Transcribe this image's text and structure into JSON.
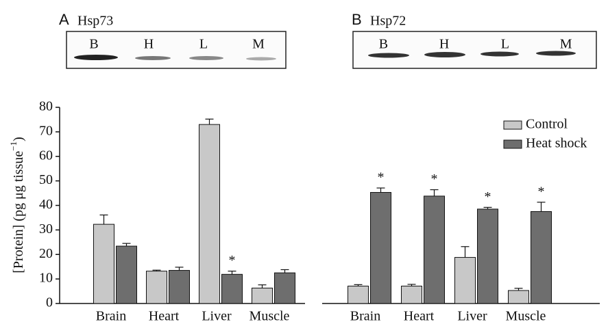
{
  "chart_data": [
    {
      "type": "bar",
      "panel": "A",
      "protein": "Hsp73",
      "lanes": [
        "B",
        "H",
        "L",
        "M"
      ],
      "categories": [
        "Brain",
        "Heart",
        "Liver",
        "Muscle"
      ],
      "series": [
        {
          "name": "Control",
          "color": "#c8c8c8",
          "values": [
            32.3,
            13.2,
            73,
            6.3
          ],
          "errors": [
            3.8,
            0.4,
            2.2,
            1.3
          ]
        },
        {
          "name": "Heat shock",
          "color": "#6e6e6e",
          "values": [
            23.4,
            13.5,
            11.9,
            12.5
          ],
          "errors": [
            1.1,
            1.3,
            1.3,
            1.3
          ]
        }
      ],
      "annotations": [
        {
          "text": "*",
          "category": 2,
          "series": 1
        }
      ],
      "y_label": "[Protein] (pg μg tissue",
      "y_label_superscript": "−1",
      "y_label_end": ")",
      "ylim": [
        0,
        80
      ],
      "yticks": [
        0,
        10,
        20,
        30,
        40,
        50,
        60,
        70,
        80
      ]
    },
    {
      "type": "bar",
      "panel": "B",
      "protein": "Hsp72",
      "lanes": [
        "B",
        "H",
        "L",
        "M"
      ],
      "categories": [
        "Brain",
        "Heart",
        "Liver",
        "Muscle"
      ],
      "series": [
        {
          "name": "Control",
          "color": "#c8c8c8",
          "values": [
            7.1,
            7.1,
            18.8,
            5.3
          ],
          "errors": [
            0.6,
            0.7,
            4.4,
            0.9
          ]
        },
        {
          "name": "Heat shock",
          "color": "#6e6e6e",
          "values": [
            45.3,
            43.8,
            38.5,
            37.5
          ],
          "errors": [
            1.8,
            2.6,
            0.7,
            3.8
          ]
        }
      ],
      "annotations": [
        {
          "text": "*",
          "category": 0,
          "series": 1
        },
        {
          "text": "*",
          "category": 1,
          "series": 1
        },
        {
          "text": "*",
          "category": 2,
          "series": 1
        },
        {
          "text": "*",
          "category": 3,
          "series": 1
        }
      ],
      "legend": "upper right",
      "ylim": [
        0,
        80
      ]
    }
  ]
}
